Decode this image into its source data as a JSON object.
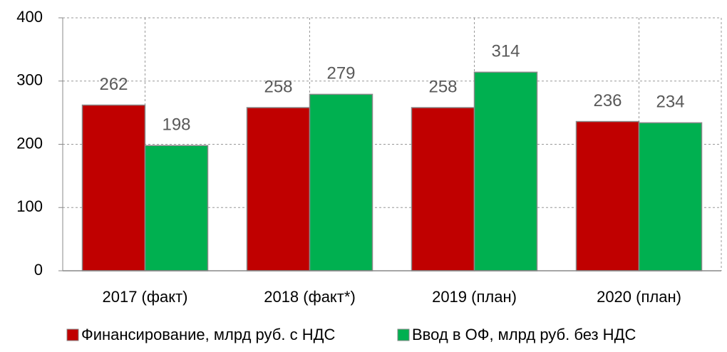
{
  "chart_data": {
    "type": "bar",
    "categories": [
      "2017 (факт)",
      "2018 (факт*)",
      "2019 (план)",
      "2020 (план)"
    ],
    "series": [
      {
        "name": "Финансирование, млрд руб. с НДС",
        "color": "#c00000",
        "values": [
          262,
          258,
          258,
          236
        ]
      },
      {
        "name": "Ввод в ОФ, млрд руб. без НДС",
        "color": "#00b050",
        "values": [
          198,
          279,
          314,
          234
        ]
      }
    ],
    "ylim": [
      0,
      400
    ],
    "yticks": [
      0,
      100,
      200,
      300,
      400
    ],
    "grid": true,
    "legend": "bottom"
  }
}
